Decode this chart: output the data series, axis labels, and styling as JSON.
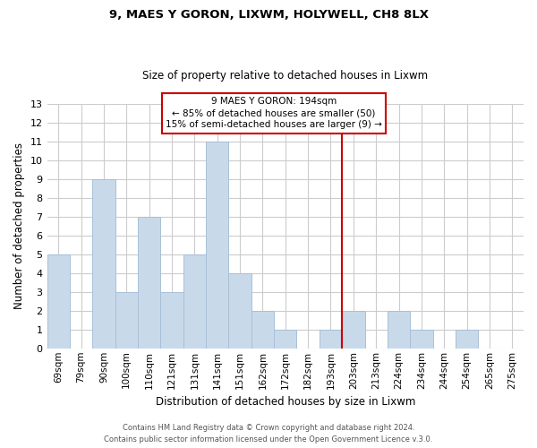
{
  "title": "9, MAES Y GORON, LIXWM, HOLYWELL, CH8 8LX",
  "subtitle": "Size of property relative to detached houses in Lixwm",
  "xlabel": "Distribution of detached houses by size in Lixwm",
  "ylabel": "Number of detached properties",
  "bar_labels": [
    "69sqm",
    "79sqm",
    "90sqm",
    "100sqm",
    "110sqm",
    "121sqm",
    "131sqm",
    "141sqm",
    "151sqm",
    "162sqm",
    "172sqm",
    "182sqm",
    "193sqm",
    "203sqm",
    "213sqm",
    "224sqm",
    "234sqm",
    "244sqm",
    "254sqm",
    "265sqm",
    "275sqm"
  ],
  "bar_values": [
    5,
    0,
    9,
    3,
    7,
    3,
    5,
    11,
    4,
    2,
    1,
    0,
    1,
    2,
    0,
    2,
    1,
    0,
    1,
    0,
    0
  ],
  "bar_color": "#c8d9ea",
  "bar_edge_color": "#a8c0d8",
  "grid_color": "#cccccc",
  "reference_line_x_label": "193sqm",
  "reference_line_color": "#cc0000",
  "annotation_title": "9 MAES Y GORON: 194sqm",
  "annotation_line1": "← 85% of detached houses are smaller (50)",
  "annotation_line2": "15% of semi-detached houses are larger (9) →",
  "annotation_box_edge": "#cc0000",
  "ylim": [
    0,
    13
  ],
  "yticks": [
    0,
    1,
    2,
    3,
    4,
    5,
    6,
    7,
    8,
    9,
    10,
    11,
    12,
    13
  ],
  "footer1": "Contains HM Land Registry data © Crown copyright and database right 2024.",
  "footer2": "Contains public sector information licensed under the Open Government Licence v.3.0."
}
